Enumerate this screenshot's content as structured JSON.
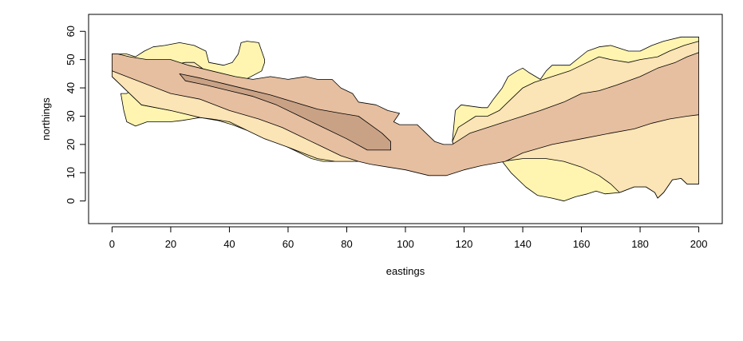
{
  "chart_data": {
    "type": "filled-contour",
    "title": "",
    "xlabel": "eastings",
    "ylabel": "northings",
    "xlim": [
      -8,
      208
    ],
    "ylim": [
      -8,
      66
    ],
    "x_ticks": [
      0,
      20,
      40,
      60,
      80,
      100,
      120,
      140,
      160,
      180,
      200
    ],
    "y_ticks": [
      0,
      10,
      20,
      30,
      40,
      50,
      60
    ],
    "grid": false,
    "legend": "none",
    "levels": [
      {
        "level": 1,
        "color": "#FFF5B0",
        "regions": [
          [
            [
              0,
              52
            ],
            [
              5,
              52
            ],
            [
              8,
              51
            ],
            [
              11,
              53
            ],
            [
              14,
              54.5
            ],
            [
              18,
              55
            ],
            [
              23,
              56
            ],
            [
              28,
              55
            ],
            [
              32,
              53
            ],
            [
              33,
              49
            ],
            [
              38,
              48
            ],
            [
              41,
              49
            ],
            [
              43,
              52
            ],
            [
              44,
              56
            ],
            [
              46,
              56.5
            ],
            [
              50,
              56
            ],
            [
              52,
              50
            ],
            [
              52,
              49
            ],
            [
              51,
              46
            ],
            [
              40,
              40
            ],
            [
              20,
              38
            ],
            [
              8,
              40
            ],
            [
              5,
              38
            ],
            [
              3,
              38
            ],
            [
              4,
              32
            ],
            [
              5,
              28
            ],
            [
              8,
              26.5
            ],
            [
              12,
              28
            ],
            [
              20,
              28
            ],
            [
              24,
              28.5
            ],
            [
              27,
              29
            ],
            [
              30,
              29.5
            ],
            [
              36,
              28.5
            ],
            [
              41,
              27
            ],
            [
              46,
              25
            ],
            [
              52,
              22
            ],
            [
              58,
              20
            ],
            [
              64,
              17
            ],
            [
              68,
              15
            ],
            [
              72,
              14
            ],
            [
              76,
              14
            ],
            [
              80,
              14
            ],
            [
              84,
              14
            ],
            [
              85,
              15
            ],
            [
              80,
              18
            ],
            [
              70,
              20
            ],
            [
              60,
              24
            ],
            [
              50,
              27
            ],
            [
              40,
              30
            ],
            [
              30,
              32
            ],
            [
              20,
              32
            ],
            [
              10,
              34
            ],
            [
              0,
              44
            ]
          ],
          [
            [
              116,
              21
            ],
            [
              117,
              32
            ],
            [
              119,
              34
            ],
            [
              126,
              33
            ],
            [
              128,
              33
            ],
            [
              130,
              36
            ],
            [
              133,
              40
            ],
            [
              135,
              44
            ],
            [
              138,
              46
            ],
            [
              140,
              47
            ],
            [
              142,
              45.5
            ],
            [
              146,
              43
            ],
            [
              148,
              46
            ],
            [
              150,
              48
            ],
            [
              156,
              48
            ],
            [
              162,
              53
            ],
            [
              166,
              54.5
            ],
            [
              170,
              55
            ],
            [
              176,
              53
            ],
            [
              180,
              53
            ],
            [
              184,
              55
            ],
            [
              188,
              56.5
            ],
            [
              194,
              58
            ],
            [
              200,
              58
            ],
            [
              200,
              6
            ],
            [
              196,
              6
            ],
            [
              194,
              8
            ],
            [
              191,
              7.5
            ],
            [
              188,
              3
            ],
            [
              186,
              1
            ],
            [
              185,
              3
            ],
            [
              182,
              5
            ],
            [
              178,
              5
            ],
            [
              173,
              3
            ],
            [
              168,
              2.5
            ],
            [
              165,
              3.5
            ],
            [
              162,
              2.5
            ],
            [
              158,
              1.5
            ],
            [
              154,
              0
            ],
            [
              150,
              1
            ],
            [
              145,
              2
            ],
            [
              141,
              5
            ],
            [
              136,
              10
            ],
            [
              133,
              14
            ],
            [
              126,
              14
            ],
            [
              118,
              16
            ]
          ]
        ]
      },
      {
        "level": 2,
        "color": "#FBE4B5",
        "regions": [
          [
            [
              0,
              52
            ],
            [
              5,
              50
            ],
            [
              10,
              48
            ],
            [
              15,
              47
            ],
            [
              20,
              48
            ],
            [
              25,
              49
            ],
            [
              28,
              49
            ],
            [
              32,
              46
            ],
            [
              40,
              42
            ],
            [
              50,
              38
            ],
            [
              60,
              35
            ],
            [
              70,
              31
            ],
            [
              80,
              27
            ],
            [
              88,
              23
            ],
            [
              92,
              20
            ],
            [
              90,
              17
            ],
            [
              84,
              14
            ],
            [
              76,
              14
            ],
            [
              70,
              15
            ],
            [
              65,
              17
            ],
            [
              60,
              19
            ],
            [
              52,
              22
            ],
            [
              46,
              25
            ],
            [
              40,
              28
            ],
            [
              34,
              29
            ],
            [
              30,
              29.5
            ],
            [
              20,
              32
            ],
            [
              10,
              34
            ],
            [
              0,
              44
            ]
          ],
          [
            [
              116,
              21
            ],
            [
              118,
              26
            ],
            [
              124,
              30
            ],
            [
              128,
              30
            ],
            [
              132,
              32
            ],
            [
              136,
              36
            ],
            [
              140,
              40
            ],
            [
              144,
              42
            ],
            [
              150,
              44
            ],
            [
              156,
              46
            ],
            [
              160,
              48
            ],
            [
              166,
              51
            ],
            [
              170,
              50
            ],
            [
              176,
              49
            ],
            [
              180,
              50
            ],
            [
              186,
              51
            ],
            [
              190,
              53
            ],
            [
              195,
              55
            ],
            [
              200,
              56.5
            ],
            [
              200,
              6
            ],
            [
              196,
              6
            ],
            [
              194,
              8
            ],
            [
              191,
              7.5
            ],
            [
              188,
              3
            ],
            [
              186,
              1
            ],
            [
              185,
              3
            ],
            [
              182,
              5
            ],
            [
              178,
              5
            ],
            [
              173,
              3
            ],
            [
              170,
              6
            ],
            [
              166,
              9
            ],
            [
              160,
              12
            ],
            [
              154,
              14
            ],
            [
              148,
              15
            ],
            [
              140,
              15
            ],
            [
              133,
              14
            ],
            [
              126,
              14
            ],
            [
              118,
              16
            ]
          ]
        ]
      },
      {
        "level": 3,
        "color": "#E6BFA0",
        "regions": [
          [
            [
              0,
              52
            ],
            [
              2,
              52
            ],
            [
              6,
              51
            ],
            [
              12,
              50
            ],
            [
              20,
              50
            ],
            [
              26,
              48
            ],
            [
              34,
              46
            ],
            [
              42,
              44
            ],
            [
              48,
              43
            ],
            [
              54,
              44
            ],
            [
              60,
              43
            ],
            [
              66,
              44
            ],
            [
              70,
              43
            ],
            [
              75,
              43
            ],
            [
              78,
              40
            ],
            [
              82,
              38
            ],
            [
              84,
              35
            ],
            [
              90,
              34
            ],
            [
              94,
              32
            ],
            [
              98,
              31
            ],
            [
              96,
              28
            ],
            [
              98,
              27
            ],
            [
              100,
              27
            ],
            [
              104,
              27
            ],
            [
              106,
              25
            ],
            [
              110,
              21
            ],
            [
              113,
              20
            ],
            [
              116,
              20
            ],
            [
              119,
              22
            ],
            [
              122,
              24
            ],
            [
              128,
              26
            ],
            [
              134,
              28
            ],
            [
              140,
              30
            ],
            [
              146,
              32
            ],
            [
              154,
              35
            ],
            [
              160,
              38
            ],
            [
              166,
              39
            ],
            [
              172,
              41
            ],
            [
              180,
              44
            ],
            [
              186,
              47
            ],
            [
              192,
              49
            ],
            [
              196,
              51
            ],
            [
              200,
              52.5
            ],
            [
              200,
              30.5
            ],
            [
              196,
              30
            ],
            [
              190,
              29
            ],
            [
              184,
              27.5
            ],
            [
              178,
              25.5
            ],
            [
              170,
              24
            ],
            [
              160,
              22
            ],
            [
              150,
              20
            ],
            [
              140,
              17
            ],
            [
              134,
              14
            ],
            [
              126,
              12.5
            ],
            [
              120,
              11
            ],
            [
              114,
              9
            ],
            [
              108,
              9
            ],
            [
              100,
              11
            ],
            [
              94,
              12
            ],
            [
              88,
              13
            ],
            [
              84,
              14
            ],
            [
              78,
              16
            ],
            [
              72,
              19
            ],
            [
              66,
              22
            ],
            [
              58,
              26
            ],
            [
              50,
              29
            ],
            [
              40,
              32
            ],
            [
              30,
              36
            ],
            [
              20,
              38
            ],
            [
              10,
              42
            ],
            [
              0,
              46
            ]
          ]
        ]
      },
      {
        "level": 4,
        "color": "#C9A286",
        "regions": [
          [
            [
              23,
              45
            ],
            [
              30,
              43.5
            ],
            [
              38,
              41.5
            ],
            [
              46,
              39.5
            ],
            [
              54,
              37.5
            ],
            [
              62,
              35
            ],
            [
              70,
              32.5
            ],
            [
              78,
              31
            ],
            [
              84,
              30
            ],
            [
              88,
              27
            ],
            [
              92,
              24
            ],
            [
              95,
              21
            ],
            [
              95,
              18
            ],
            [
              92,
              18
            ],
            [
              87,
              18
            ],
            [
              80,
              22
            ],
            [
              72,
              26
            ],
            [
              64,
              30
            ],
            [
              56,
              34
            ],
            [
              48,
              37
            ],
            [
              40,
              39
            ],
            [
              32,
              41
            ],
            [
              25,
              42.5
            ]
          ]
        ]
      }
    ]
  }
}
